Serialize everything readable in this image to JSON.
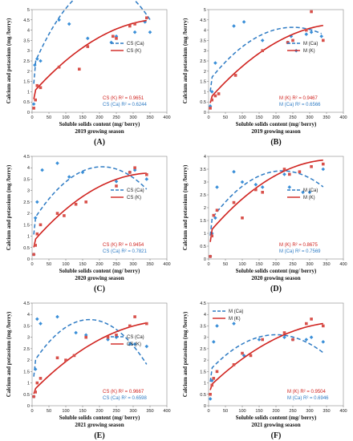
{
  "figure": {
    "panels": [
      "A",
      "B",
      "C",
      "D",
      "E",
      "F"
    ]
  },
  "colors": {
    "ca": "#2e7bc4",
    "k": "#d0231f",
    "ca_marker": "#3a8fd8",
    "k_marker": "#d8504a"
  },
  "chart_data": [
    {
      "panel": "A",
      "label": "(A)",
      "type": "scatter",
      "xlabel": "Soluble solids content (mg/ berry)",
      "ylabel": "Calcium and potassium (mg /berry)",
      "season": "2019 growing season",
      "xlim": [
        0,
        400
      ],
      "ylim": [
        0,
        5
      ],
      "xticks": [
        0,
        50,
        100,
        150,
        200,
        250,
        300,
        350,
        400
      ],
      "yticks": [
        0,
        0.5,
        1,
        1.5,
        2,
        2.5,
        3,
        3.5,
        4,
        4.5,
        5
      ],
      "legend": [
        "CS (Ca)",
        "CS (K)"
      ],
      "legend_position": "right",
      "r2": [
        "CS (K) R² = 0.9651",
        "CS (Ca) R² = 0.6244"
      ],
      "series": [
        {
          "name": "CS (Ca)",
          "trend": "dashed",
          "x": [
            5,
            8,
            15,
            25,
            80,
            110,
            165,
            235,
            250,
            305,
            335,
            350
          ],
          "y": [
            0.4,
            2.3,
            2.6,
            2.5,
            4.5,
            4.3,
            3.6,
            3.4,
            3.7,
            3.9,
            4.4,
            3.9
          ],
          "fit": [
            0.2,
            2.1,
            0.0386,
            -9.06e-05
          ]
        },
        {
          "name": "CS (K)",
          "trend": "solid",
          "x": [
            5,
            10,
            15,
            25,
            80,
            140,
            165,
            240,
            250,
            290,
            305,
            340
          ],
          "y": [
            0.2,
            0.6,
            1.3,
            1.2,
            2.2,
            2.1,
            3.2,
            3.7,
            3.6,
            4.2,
            4.3,
            4.6
          ],
          "fit": [
            0.2,
            0.9,
            0.0185,
            -2.35e-05
          ]
        }
      ]
    },
    {
      "panel": "B",
      "label": "(B)",
      "type": "scatter",
      "xlabel": "Soluble solids content (mg/ berry)",
      "ylabel": "Calcium and potassium (mg /berry)",
      "season": "2019 growing season",
      "xlim": [
        0,
        400
      ],
      "ylim": [
        0,
        5
      ],
      "xticks": [
        0,
        50,
        100,
        150,
        200,
        250,
        300,
        350,
        400
      ],
      "yticks": [
        0,
        0.5,
        1,
        1.5,
        2,
        2.5,
        3,
        3.5,
        4,
        4.5,
        5
      ],
      "legend": [
        "M (Ca)",
        "M (K)"
      ],
      "legend_position": "right",
      "r2": [
        "M (K) R² = 0.9467",
        "M (Ca) R² = 0.6566"
      ],
      "series": [
        {
          "name": "M (Ca)",
          "trend": "dashed",
          "x": [
            5,
            10,
            20,
            75,
            105,
            160,
            235,
            245,
            260,
            290,
            305,
            335
          ],
          "y": [
            0.3,
            1.0,
            2.4,
            4.2,
            4.4,
            3.5,
            3.4,
            3.7,
            3.0,
            3.8,
            3.9,
            3.7
          ],
          "fit": [
            0.2,
            1.5,
            0.0211,
            -4.22e-05
          ]
        },
        {
          "name": "M (K)",
          "trend": "solid",
          "x": [
            5,
            10,
            20,
            30,
            80,
            160,
            235,
            250,
            290,
            305,
            340
          ],
          "y": [
            0.2,
            0.6,
            0.8,
            0.9,
            1.8,
            3.0,
            3.4,
            3.5,
            4.0,
            4.9,
            3.5
          ],
          "fit": [
            0.2,
            0.6,
            0.0187,
            -2.36e-05
          ]
        }
      ]
    },
    {
      "panel": "C",
      "label": "(C)",
      "type": "scatter",
      "xlabel": "Soluble solids content (mg/ berry)",
      "ylabel": "Calcium and potassium (mg /berry)",
      "season": "2020 growing season",
      "xlim": [
        0,
        400
      ],
      "ylim": [
        0,
        4.5
      ],
      "xticks": [
        0,
        50,
        100,
        150,
        200,
        250,
        300,
        350,
        400
      ],
      "yticks": [
        0,
        0.5,
        1,
        1.5,
        2,
        2.5,
        3,
        3.5,
        4,
        4.5
      ],
      "legend": [
        "CS (Ca)",
        "CS (K)"
      ],
      "legend_position": "right",
      "r2": [
        "CS (K) R² = 0.9454",
        "CS (Ca) R² = 0.7821"
      ],
      "series": [
        {
          "name": "CS (Ca)",
          "trend": "dashed",
          "x": [
            5,
            10,
            15,
            30,
            75,
            110,
            150,
            250,
            290,
            305,
            340
          ],
          "y": [
            0.2,
            1.8,
            2.5,
            3.9,
            4.2,
            3.6,
            3.8,
            3.4,
            3.8,
            3.9,
            3.5
          ],
          "fit": [
            0.2,
            1.6,
            0.0235,
            -5.65e-05
          ]
        },
        {
          "name": "CS (K)",
          "trend": "solid",
          "x": [
            5,
            10,
            15,
            25,
            75,
            95,
            130,
            160,
            250,
            290,
            305,
            340
          ],
          "y": [
            0.2,
            0.6,
            1.1,
            1.5,
            2.0,
            1.9,
            2.4,
            2.5,
            3.2,
            3.8,
            4.0,
            3.7
          ],
          "fit": [
            0.2,
            0.7,
            0.0172,
            -2.41e-05
          ]
        }
      ]
    },
    {
      "panel": "D",
      "label": "(D)",
      "type": "scatter",
      "xlabel": "Soluble solids content (mg/ berry)",
      "ylabel": "Calcium and potassium (mg /berry)",
      "season": "2020 growing season",
      "xlim": [
        0,
        400
      ],
      "ylim": [
        0,
        4
      ],
      "xticks": [
        0,
        50,
        100,
        150,
        200,
        250,
        300,
        350,
        400
      ],
      "yticks": [
        0,
        0.5,
        1,
        1.5,
        2,
        2.5,
        3,
        3.5,
        4
      ],
      "legend": [
        "M (Ca)",
        "M (K)"
      ],
      "legend_position": "right",
      "r2": [
        "M (K) R² = 0.8675",
        "M (Ca) R² = 0.7569"
      ],
      "series": [
        {
          "name": "M (Ca)",
          "trend": "dashed",
          "x": [
            5,
            10,
            20,
            25,
            75,
            100,
            140,
            160,
            225,
            240,
            280,
            300,
            340
          ],
          "y": [
            0.1,
            1.0,
            1.6,
            2.8,
            3.4,
            3.0,
            2.9,
            2.8,
            3.3,
            2.8,
            2.6,
            2.6,
            3.5
          ],
          "fit": [
            0.1,
            1.4,
            0.0186,
            -4.25e-05
          ]
        },
        {
          "name": "M (K)",
          "trend": "solid",
          "x": [
            5,
            10,
            15,
            25,
            75,
            100,
            140,
            160,
            225,
            240,
            270,
            305,
            340
          ],
          "y": [
            0.1,
            0.9,
            1.7,
            1.9,
            2.2,
            1.6,
            2.7,
            2.6,
            3.5,
            3.3,
            3.4,
            3.6,
            3.7
          ],
          "fit": [
            0.1,
            1.0,
            0.0155,
            -2.09e-05
          ]
        }
      ]
    },
    {
      "panel": "E",
      "label": "(E)",
      "type": "scatter",
      "xlabel": "Soluble solids content (mg/ berry)",
      "ylabel": "Calcium and potassium (mg /berry)",
      "season": "2021 growing season",
      "xlim": [
        0,
        400
      ],
      "ylim": [
        0,
        4.5
      ],
      "xticks": [
        0,
        50,
        100,
        150,
        200,
        250,
        300,
        350,
        400
      ],
      "yticks": [
        0,
        0.5,
        1,
        1.5,
        2,
        2.5,
        3,
        3.5,
        4,
        4.5
      ],
      "legend": [
        "CS (Ca)",
        "CS (K)"
      ],
      "legend_position": "right",
      "r2": [
        "CS (K) R² = 0.9667",
        "CS (Ca) R² = 0.6598"
      ],
      "series": [
        {
          "name": "CS (Ca)",
          "trend": "dashed",
          "x": [
            5,
            10,
            15,
            25,
            75,
            130,
            160,
            225,
            250,
            290,
            305,
            340
          ],
          "y": [
            0.4,
            1.6,
            3.8,
            3.6,
            3.9,
            3.2,
            3.1,
            2.9,
            3.0,
            2.7,
            2.7,
            2.6
          ],
          "fit": [
            0.4,
            1.8,
            0.0232,
            -6.81e-05
          ]
        },
        {
          "name": "CS (K)",
          "trend": "solid",
          "x": [
            5,
            10,
            15,
            25,
            75,
            100,
            125,
            160,
            225,
            250,
            290,
            305,
            340
          ],
          "y": [
            0.4,
            0.6,
            1.0,
            1.2,
            2.1,
            2.0,
            2.2,
            3.0,
            3.0,
            3.1,
            3.5,
            3.9,
            3.6
          ],
          "fit": [
            0.4,
            0.6,
            0.0152,
            -1.85e-05
          ]
        }
      ]
    },
    {
      "panel": "F",
      "label": "(F)",
      "type": "scatter",
      "xlabel": "Soluble solids content (mg/ berry)",
      "ylabel": "Calcium and potassium (mg /berry)",
      "season": "2021 growing season",
      "xlim": [
        0,
        400
      ],
      "ylim": [
        0,
        4.5
      ],
      "xticks": [
        0,
        50,
        100,
        150,
        200,
        250,
        300,
        350,
        400
      ],
      "yticks": [
        0,
        0.5,
        1,
        1.5,
        2,
        2.5,
        3,
        3.5,
        4,
        4.5
      ],
      "legend": [
        "M (Ca)",
        "M (K)"
      ],
      "legend_position": "top-left",
      "r2": [
        "M (K) R² = 0.9504",
        "M (Ca) R² = 0.6946"
      ],
      "series": [
        {
          "name": "M (Ca)",
          "trend": "dashed",
          "x": [
            5,
            10,
            15,
            25,
            75,
            105,
            150,
            225,
            250,
            290,
            305,
            340
          ],
          "y": [
            0.3,
            1.1,
            2.8,
            3.5,
            3.6,
            2.2,
            2.9,
            3.0,
            2.9,
            2.9,
            3.0,
            2.8
          ],
          "fit": [
            0.3,
            1.5,
            0.0161,
            -4.02e-05
          ]
        },
        {
          "name": "M (K)",
          "trend": "solid",
          "x": [
            5,
            10,
            15,
            25,
            75,
            100,
            125,
            160,
            225,
            250,
            290,
            305,
            340
          ],
          "y": [
            0.5,
            0.9,
            1.2,
            1.5,
            1.8,
            2.3,
            2.2,
            2.9,
            3.2,
            2.9,
            3.6,
            3.8,
            3.5
          ],
          "fit": [
            0.5,
            0.8,
            0.0143,
            -1.78e-05
          ]
        }
      ]
    }
  ]
}
